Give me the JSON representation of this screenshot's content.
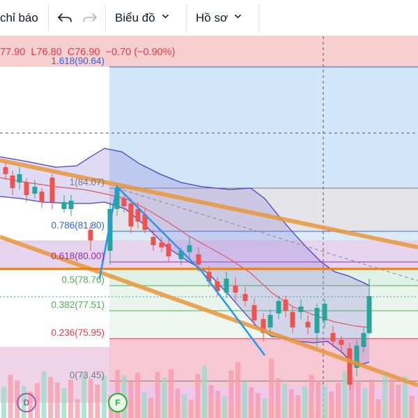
{
  "toolbar": {
    "indicators_label": "chỉ báo",
    "undo_icon": "undo-icon",
    "redo_icon": "redo-icon",
    "chart_menu_label": "Biểu đồ",
    "profile_menu_label": "Hồ sơ",
    "chevron_icon": "chevron-down-icon"
  },
  "ohlc_legend": {
    "high": "77.90",
    "low": "L76.80",
    "close": "C76.90",
    "change": "−0.70 (−0.90%)"
  },
  "fib_levels": [
    {
      "label": "1.618(90.64)",
      "price": 90.64,
      "color": "#2962ff"
    },
    {
      "label": "1(84.07)",
      "price": 84.07,
      "color": "#787b86"
    },
    {
      "label": "0.786(81.80)",
      "price": 81.8,
      "color": "#2962ff"
    },
    {
      "label": "0.618(80.00)",
      "price": 80.0,
      "color": "#9c27b0"
    },
    {
      "label": "0.5(78.76)",
      "price": 78.76,
      "color": "#4caf50"
    },
    {
      "label": "0.382(77.51)",
      "price": 77.51,
      "color": "#4caf50"
    },
    {
      "label": "0.236(75.95)",
      "price": 75.95,
      "color": "#f23645"
    },
    {
      "label": "0(73.45)",
      "price": 73.45,
      "color": "#787b86"
    }
  ],
  "markers": {
    "dividend": "D",
    "fundamental": "F"
  },
  "colors": {
    "up": "#26a69a",
    "down": "#ef5350",
    "channel": "#e8963a",
    "wave": "#2196f3",
    "bollinger": "#4a3fc4"
  }
}
